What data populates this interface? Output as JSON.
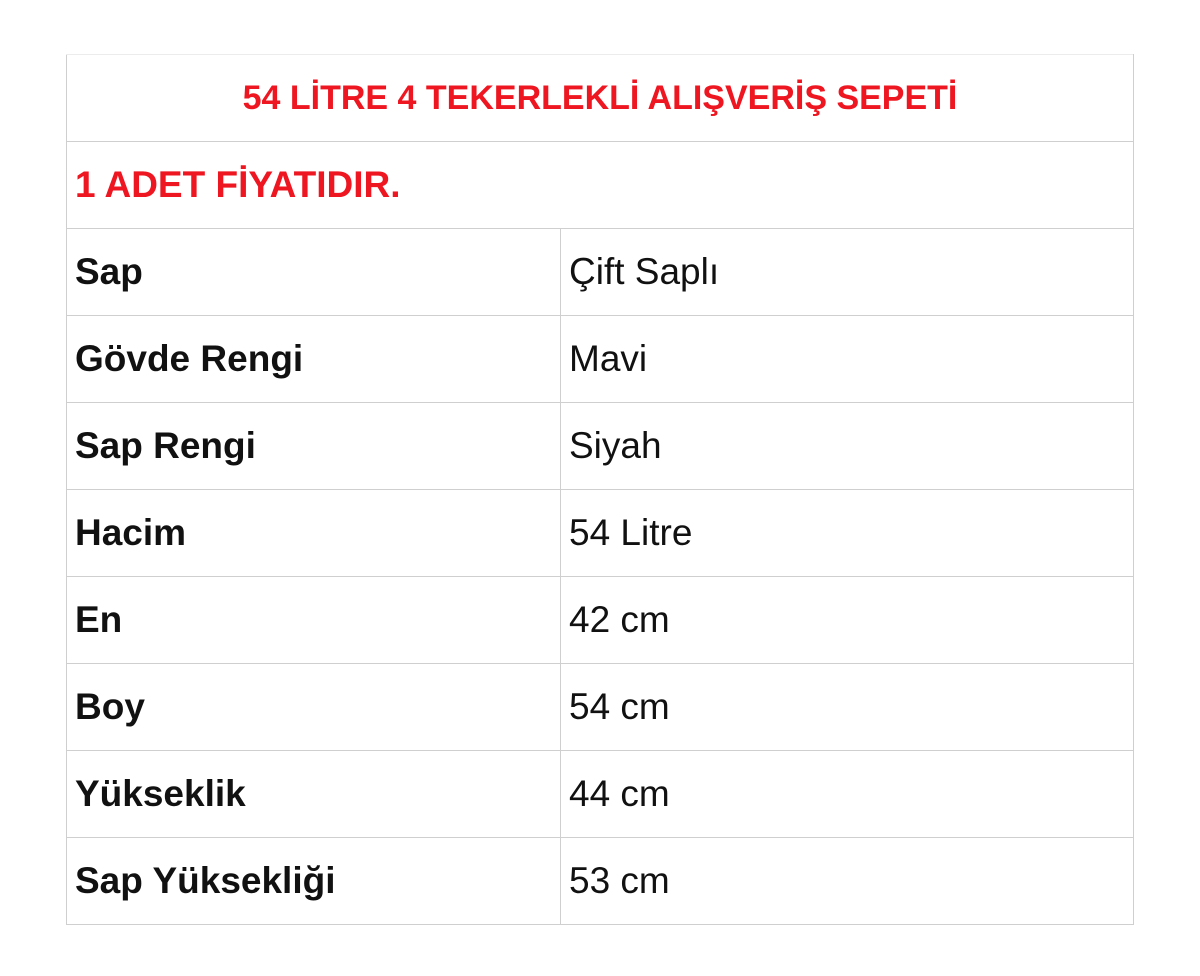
{
  "title": "54 LİTRE 4 TEKERLEKLİ ALIŞVERİŞ SEPETİ",
  "subtitle": "1 ADET FİYATIDIR.",
  "accent_color": "#ee1620",
  "specs": [
    {
      "label": "Sap",
      "value": "Çift Saplı"
    },
    {
      "label": "Gövde Rengi",
      "value": "Mavi"
    },
    {
      "label": "Sap Rengi",
      "value": "Siyah"
    },
    {
      "label": "Hacim",
      "value": "54 Litre"
    },
    {
      "label": "En",
      "value": "42 cm"
    },
    {
      "label": "Boy",
      "value": "54 cm"
    },
    {
      "label": "Yükseklik",
      "value": "44 cm"
    },
    {
      "label": "Sap Yüksekliği",
      "value": "53 cm"
    }
  ]
}
